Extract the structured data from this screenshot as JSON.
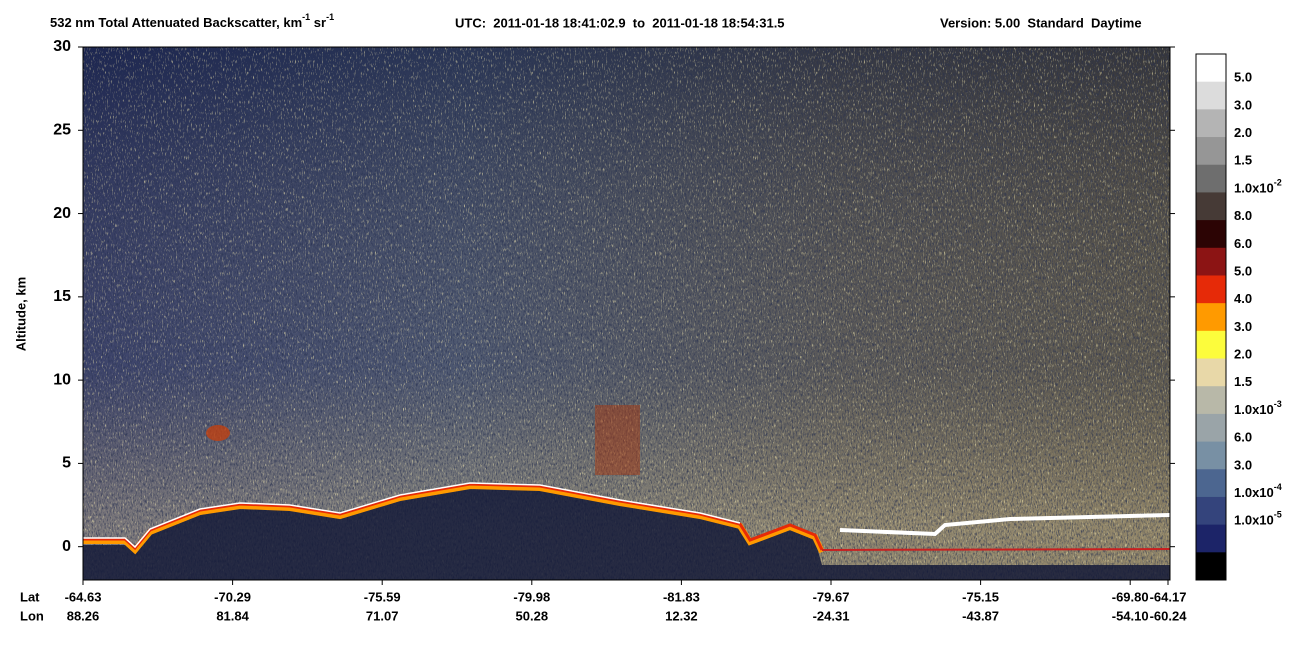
{
  "chart_data": {
    "type": "heatmap",
    "title_parts": [
      "532 nm Total Attenuated Backscatter, km",
      "-1",
      " sr",
      "-1"
    ],
    "time_range": "UTC:  2011-01-18 18:41:02.9  to  2011-01-18 18:54:31.5",
    "version": "Version: 5.00  Standard  Daytime",
    "ylabel": "Altitude, km",
    "ylim": [
      -2,
      30
    ],
    "yticks": [
      0,
      5,
      10,
      15,
      20,
      25,
      30
    ],
    "x_row_labels": [
      "Lat",
      "Lon"
    ],
    "xticks": [
      {
        "lat": "-64.63",
        "lon": "88.26"
      },
      {
        "lat": "-70.29",
        "lon": "81.84"
      },
      {
        "lat": "-75.59",
        "lon": "71.07"
      },
      {
        "lat": "-79.98",
        "lon": "50.28"
      },
      {
        "lat": "-81.83",
        "lon": "12.32"
      },
      {
        "lat": "-79.67",
        "lon": "-24.31"
      },
      {
        "lat": "-75.15",
        "lon": "-43.87"
      },
      {
        "lat": "-69.80",
        "lon": "-54.10"
      },
      {
        "lat": "-64.17",
        "lon": "-60.24"
      }
    ],
    "colorbar": {
      "colors": [
        "#ffffff",
        "#dcdcdc",
        "#b4b4b4",
        "#969696",
        "#6e6e6e",
        "#463a36",
        "#2c0404",
        "#8c1414",
        "#e62a08",
        "#ff9a00",
        "#fcfc3c",
        "#e8d8a8",
        "#b8b8a8",
        "#9aa4a8",
        "#7890a4",
        "#4c6690",
        "#34447c",
        "#1c2468",
        "#000000"
      ],
      "labels": [
        {
          "text": "5.0"
        },
        {
          "text": "3.0"
        },
        {
          "text": "2.0"
        },
        {
          "text": "1.5"
        },
        {
          "text": "1.0x10",
          "exponent": "-2"
        },
        {
          "text": "8.0"
        },
        {
          "text": "6.0"
        },
        {
          "text": "5.0"
        },
        {
          "text": "4.0"
        },
        {
          "text": "3.0"
        },
        {
          "text": "2.0"
        },
        {
          "text": "1.5"
        },
        {
          "text": "1.0x10",
          "exponent": "-3"
        },
        {
          "text": "6.0"
        },
        {
          "text": "3.0"
        },
        {
          "text": "1.0x10",
          "exponent": "-4"
        },
        {
          "text": "1.0x10",
          "exponent": "-5"
        }
      ]
    }
  }
}
